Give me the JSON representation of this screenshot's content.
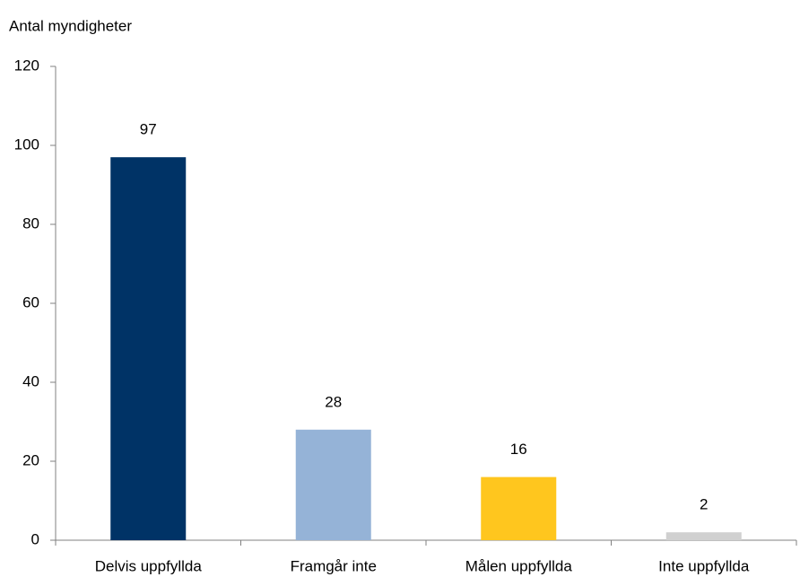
{
  "chart_data": {
    "type": "bar",
    "y_axis_label": "Antal myndigheter",
    "categories": [
      "Delvis uppfyllda",
      "Framgår inte",
      "Målen uppfyllda",
      "Inte uppfyllda"
    ],
    "values": [
      97,
      28,
      16,
      2
    ],
    "colors": [
      "#003366",
      "#95b3d7",
      "#ffc61e",
      "#d0d0d0"
    ],
    "ylim": [
      0,
      120
    ],
    "yticks": [
      0,
      20,
      40,
      60,
      80,
      100,
      120
    ],
    "grid": false
  }
}
